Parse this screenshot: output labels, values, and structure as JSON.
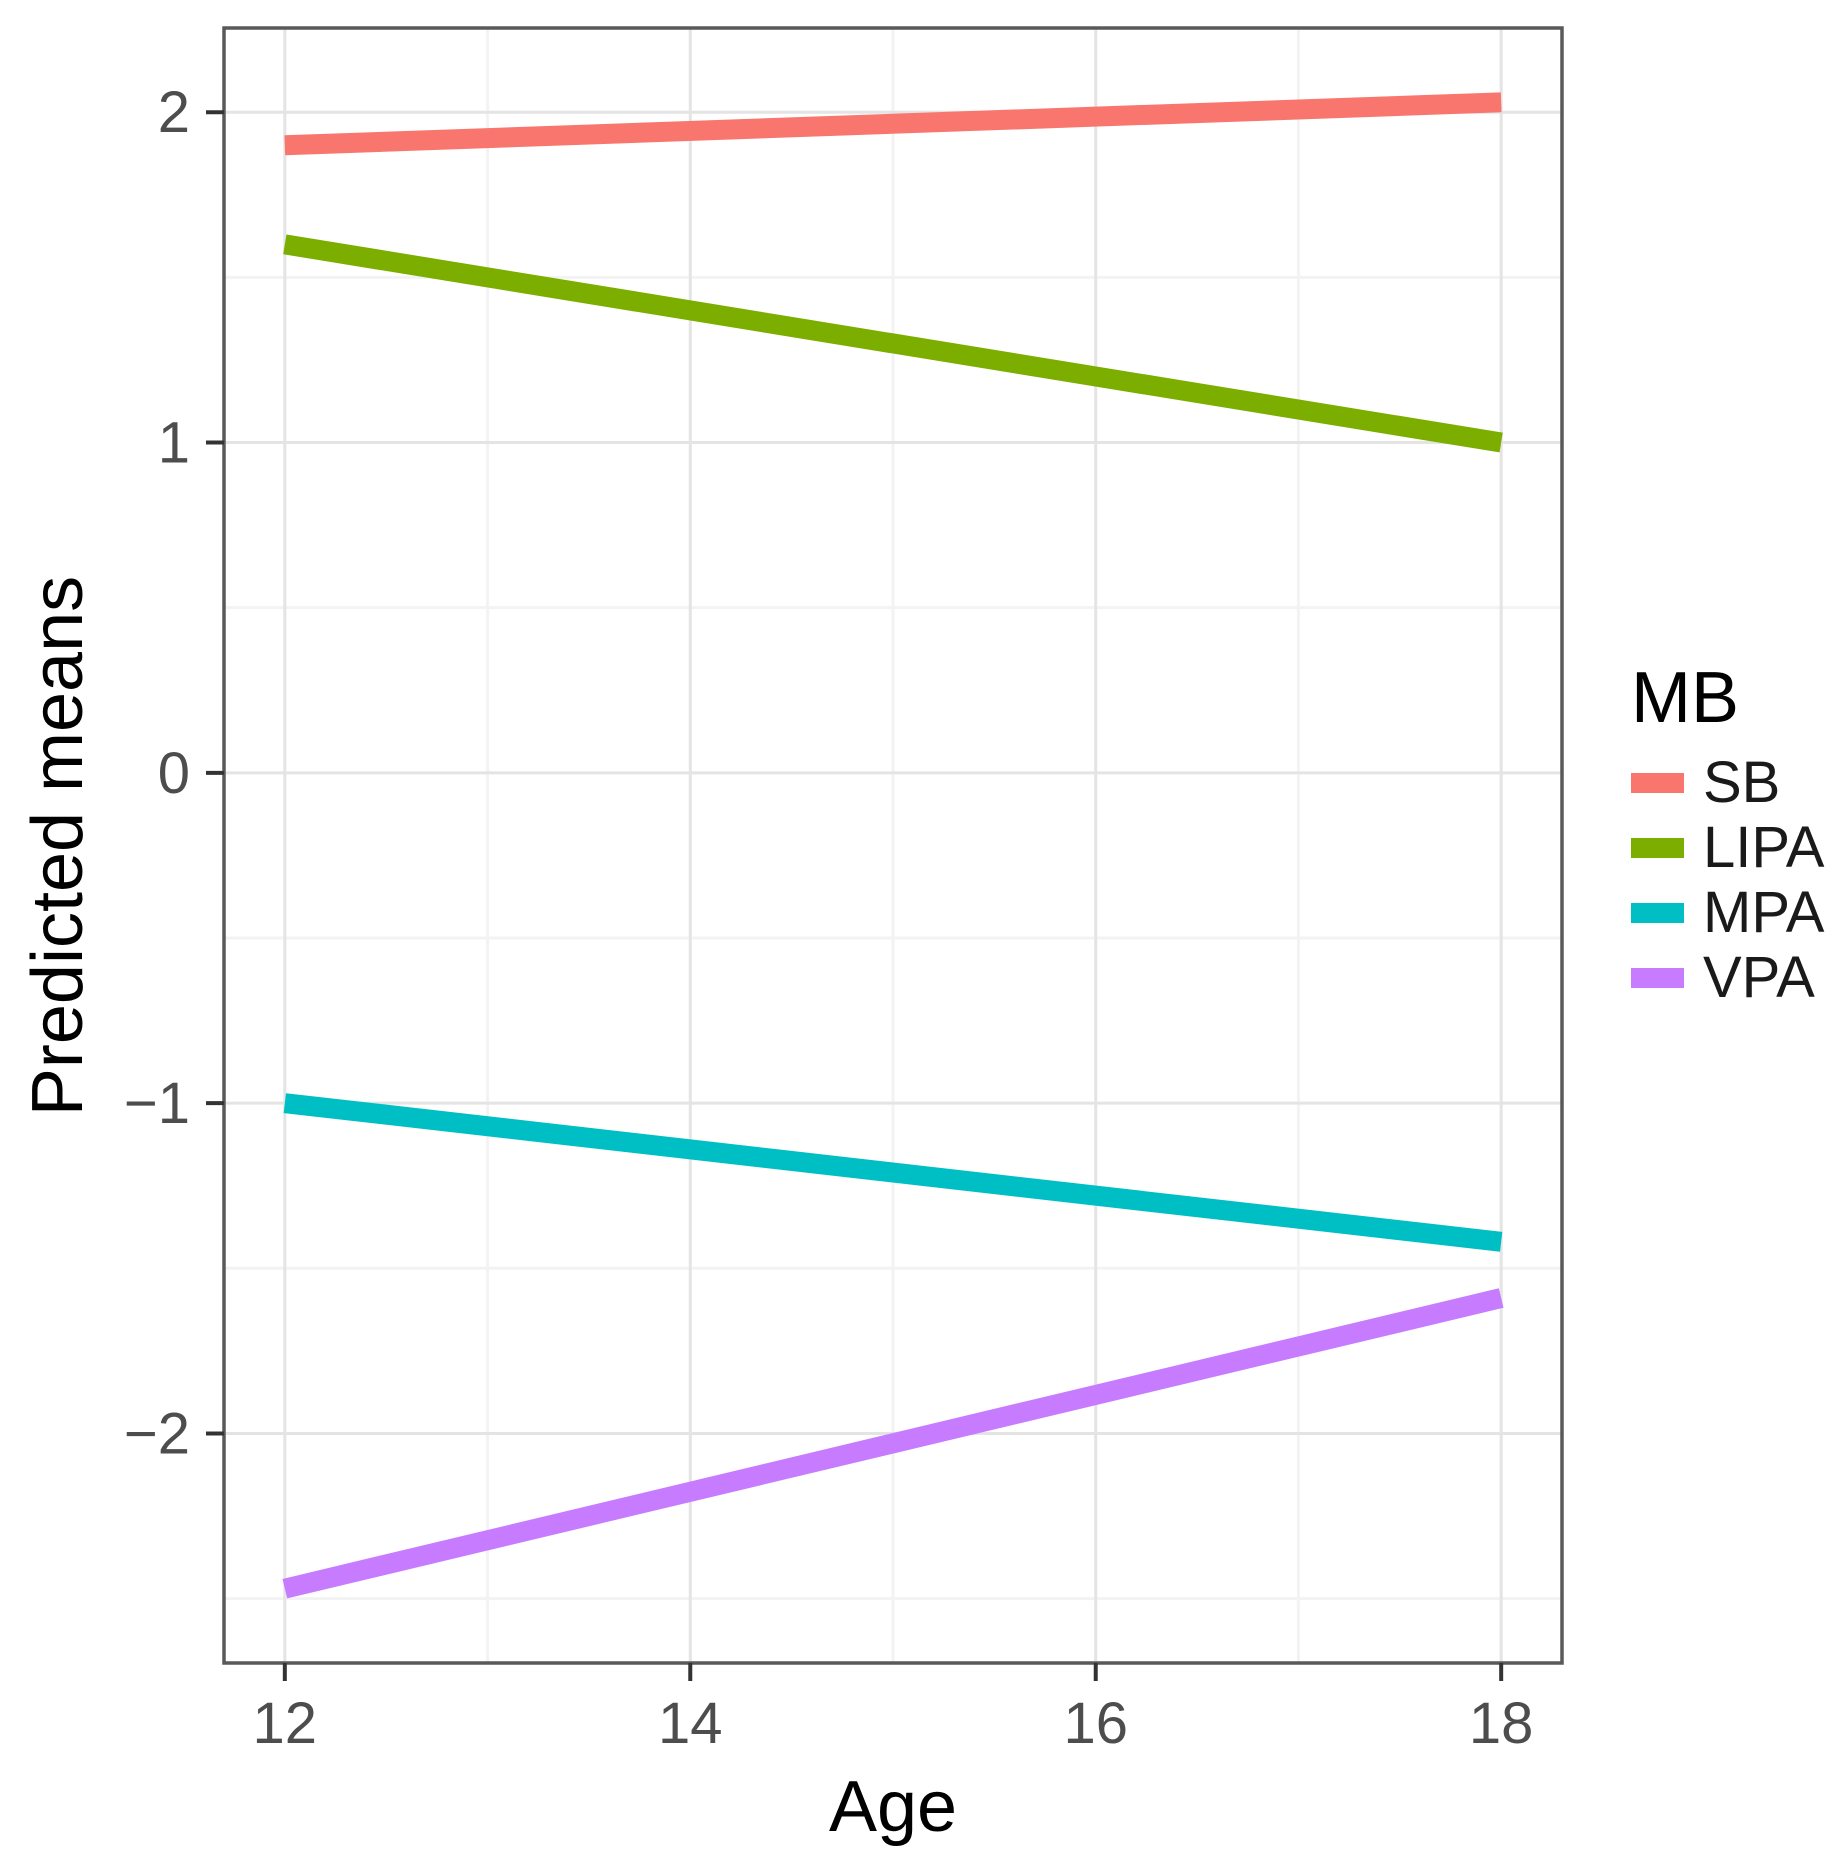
{
  "figure": {
    "background_color": "#ffffff"
  },
  "chart_data": {
    "type": "line",
    "title": "",
    "xlabel": "Age",
    "ylabel": "Predicted means",
    "x": [
      12,
      18
    ],
    "series": [
      {
        "name": "SB",
        "color": "#F8766D",
        "values": [
          1.9,
          2.03
        ]
      },
      {
        "name": "LIPA",
        "color": "#7CAE00",
        "values": [
          1.6,
          1.0
        ]
      },
      {
        "name": "MPA",
        "color": "#00BFC4",
        "values": [
          -1.0,
          -1.42
        ]
      },
      {
        "name": "VPA",
        "color": "#C77CFF",
        "values": [
          -2.47,
          -1.59
        ]
      }
    ],
    "x_ticks": [
      12,
      14,
      16,
      18
    ],
    "y_ticks": [
      2,
      1,
      0,
      -1,
      -2
    ],
    "x_minor_ticks": [
      13,
      15,
      17
    ],
    "y_minor_ticks": [
      1.5,
      0.5,
      -0.5,
      -1.5,
      -2.5
    ],
    "xlim": [
      11.7,
      18.3
    ],
    "ylim": [
      -2.695,
      2.255
    ],
    "grid": "major+minor",
    "legend": {
      "title": "MB",
      "position": "right",
      "entries": [
        "SB",
        "LIPA",
        "MPA",
        "VPA"
      ]
    },
    "styles": {
      "panel_background": "#ffffff",
      "panel_border_color": "#595959",
      "major_grid_color": "#e4e4e4",
      "minor_grid_color": "#f3f3f3",
      "tick_mark_color": "#333333",
      "tick_label_color": "#4d4d4d",
      "axis_title_color": "#000000",
      "line_width": 20
    }
  }
}
